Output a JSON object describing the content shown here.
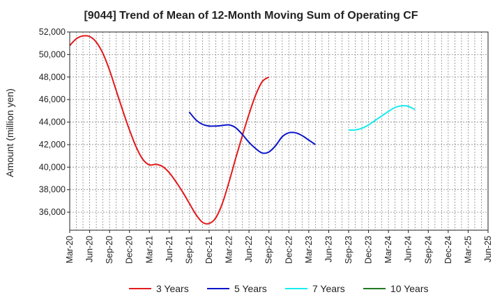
{
  "chart_data": {
    "type": "line",
    "title": "[9044]  Trend of Mean of 12-Month Moving Sum of Operating CF",
    "xlabel": "",
    "ylabel": "Amount (million yen)",
    "ylim": [
      34400,
      52000
    ],
    "yticks": [
      36000,
      38000,
      40000,
      42000,
      44000,
      46000,
      48000,
      50000,
      52000
    ],
    "ytick_labels": [
      "36,000",
      "38,000",
      "40,000",
      "42,000",
      "44,000",
      "46,000",
      "48,000",
      "50,000",
      "52,000"
    ],
    "xtick_labels": [
      "Mar-20",
      "Jun-20",
      "Sep-20",
      "Dec-20",
      "Mar-21",
      "Jun-21",
      "Sep-21",
      "Dec-21",
      "Mar-22",
      "Jun-22",
      "Sep-22",
      "Dec-22",
      "Mar-23",
      "Jun-23",
      "Sep-23",
      "Dec-23",
      "Mar-24",
      "Jun-24",
      "Sep-24",
      "Dec-24",
      "Mar-25",
      "Jun-25"
    ],
    "grid": true,
    "legend_position": "bottom",
    "series": [
      {
        "name": "3 Years",
        "color": "#e31a1c",
        "start_index": 0,
        "values": [
          50800,
          51400,
          51650,
          51600,
          51100,
          50100,
          48600,
          46800,
          45000,
          43300,
          41800,
          40700,
          40200,
          40250,
          40050,
          39500,
          38700,
          37800,
          36800,
          35800,
          35100,
          35000,
          35500,
          36800,
          38700,
          40800,
          42800,
          44700,
          46400,
          47600,
          48000
        ]
      },
      {
        "name": "5 Years",
        "color": "#0a14c8",
        "start_index": 18,
        "values": [
          44900,
          44200,
          43800,
          43650,
          43650,
          43700,
          43750,
          43500,
          42900,
          42200,
          41650,
          41250,
          41350,
          41900,
          42700,
          43050,
          43050,
          42800,
          42400,
          42000
        ]
      },
      {
        "name": "7 Years",
        "color": "#17ecf0",
        "start_index": 42,
        "values": [
          43300,
          43300,
          43450,
          43750,
          44150,
          44550,
          44950,
          45300,
          45450,
          45400,
          45100
        ]
      },
      {
        "name": "10 Years",
        "color": "#1f7a1f",
        "start_index": 0,
        "values": []
      }
    ]
  }
}
